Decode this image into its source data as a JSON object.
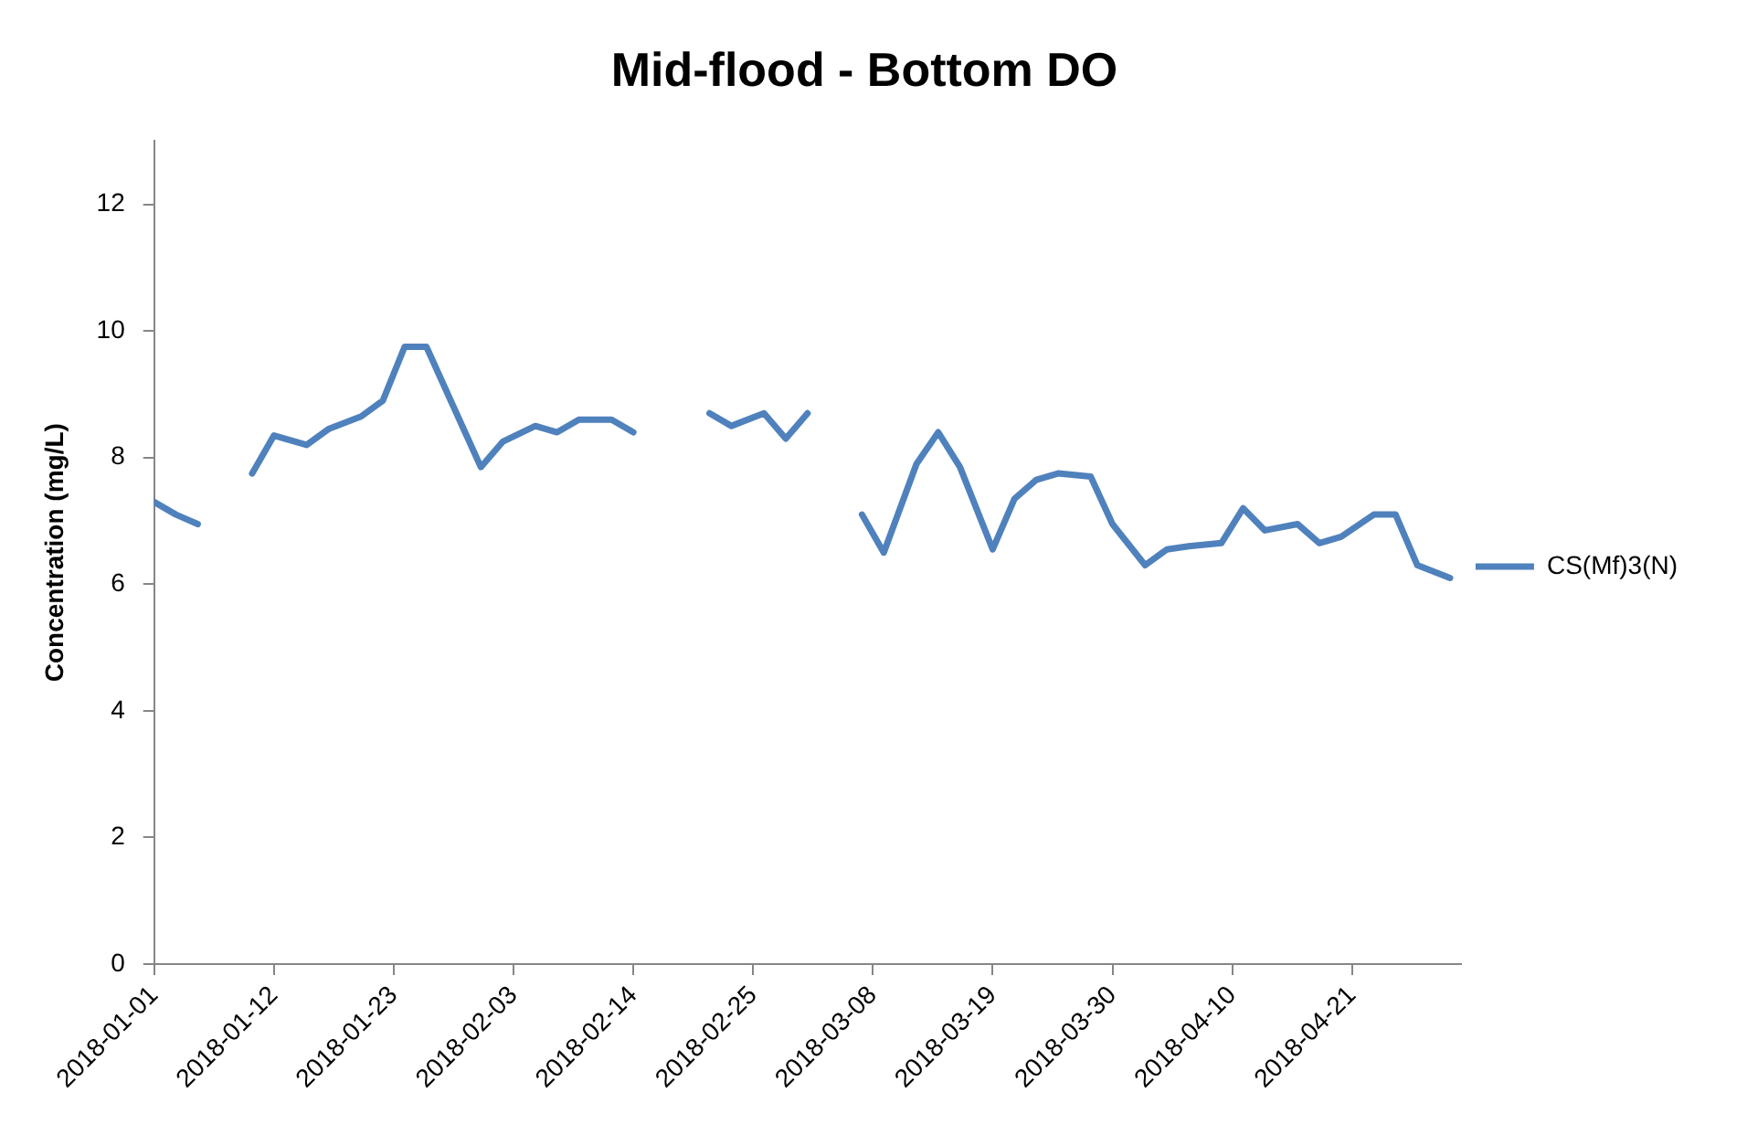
{
  "chart_data": {
    "type": "line",
    "title": "Mid-flood - Bottom DO",
    "ylabel": "Concentration (mg/L)",
    "x": [
      "2018-01-01",
      "2018-01-03",
      "2018-01-05",
      "2018-01-07",
      "2018-01-10",
      "2018-01-12",
      "2018-01-15",
      "2018-01-17",
      "2018-01-20",
      "2018-01-22",
      "2018-01-24",
      "2018-01-26",
      "2018-01-31",
      "2018-02-02",
      "2018-02-05",
      "2018-02-07",
      "2018-02-09",
      "2018-02-12",
      "2018-02-14",
      "2018-02-17",
      "2018-02-21",
      "2018-02-23",
      "2018-02-26",
      "2018-02-28",
      "2018-03-02",
      "2018-03-04",
      "2018-03-07",
      "2018-03-09",
      "2018-03-12",
      "2018-03-14",
      "2018-03-16",
      "2018-03-19",
      "2018-03-21",
      "2018-03-23",
      "2018-03-25",
      "2018-03-28",
      "2018-03-30",
      "2018-04-02",
      "2018-04-04",
      "2018-04-06",
      "2018-04-09",
      "2018-04-11",
      "2018-04-13",
      "2018-04-16",
      "2018-04-18",
      "2018-04-20",
      "2018-04-23",
      "2018-04-25",
      "2018-04-27",
      "2018-04-30"
    ],
    "series": [
      {
        "name": "CS(Mf)3(N)",
        "color": "#4f81bd",
        "values": [
          7.3,
          7.1,
          6.95,
          null,
          7.75,
          8.35,
          8.2,
          8.45,
          8.65,
          8.9,
          9.75,
          9.75,
          7.85,
          8.25,
          8.5,
          8.4,
          8.6,
          8.6,
          8.4,
          null,
          8.7,
          8.5,
          8.7,
          8.3,
          8.7,
          null,
          7.1,
          6.5,
          7.9,
          8.4,
          7.85,
          6.55,
          7.35,
          7.65,
          7.75,
          7.7,
          6.95,
          6.3,
          6.55,
          6.6,
          6.65,
          7.2,
          6.85,
          6.95,
          6.65,
          6.75,
          7.1,
          7.1,
          6.3,
          6.1
        ]
      }
    ],
    "xlim": [
      "2018-01-01",
      "2018-05-01"
    ],
    "xticks": [
      "2018-01-01",
      "2018-01-12",
      "2018-01-23",
      "2018-02-03",
      "2018-02-14",
      "2018-02-25",
      "2018-03-08",
      "2018-03-19",
      "2018-03-30",
      "2018-04-10",
      "2018-04-21"
    ],
    "ylim": [
      0,
      13
    ],
    "yticks": [
      0,
      2,
      4,
      6,
      8,
      10,
      12
    ],
    "grid": false,
    "legend": "right",
    "marker": "none",
    "line_style": "solid"
  }
}
